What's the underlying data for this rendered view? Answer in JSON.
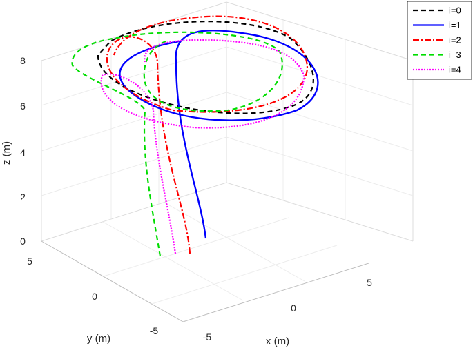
{
  "chart_data": {
    "type": "line3d",
    "xlabel": "x (m)",
    "ylabel": "y (m)",
    "zlabel": "z (m)",
    "xlim": [
      -7,
      7
    ],
    "ylim": [
      -7,
      7
    ],
    "zlim": [
      0,
      8
    ],
    "xticks": [
      "-5",
      "0",
      "5"
    ],
    "yticks": [
      "5",
      "0",
      "-5"
    ],
    "zticks": [
      "0",
      "2",
      "4",
      "6",
      "8"
    ],
    "grid": true,
    "legend_position": "top-right",
    "series": [
      {
        "name": "i=0",
        "color": "#000000",
        "style": "dashed"
      },
      {
        "name": "i=1",
        "color": "#0000ff",
        "style": "solid"
      },
      {
        "name": "i=2",
        "color": "#ff0000",
        "style": "dashdot"
      },
      {
        "name": "i=3",
        "color": "#00dd00",
        "style": "dashed"
      },
      {
        "name": "i=4",
        "color": "#ff00ff",
        "style": "dotted"
      }
    ]
  }
}
